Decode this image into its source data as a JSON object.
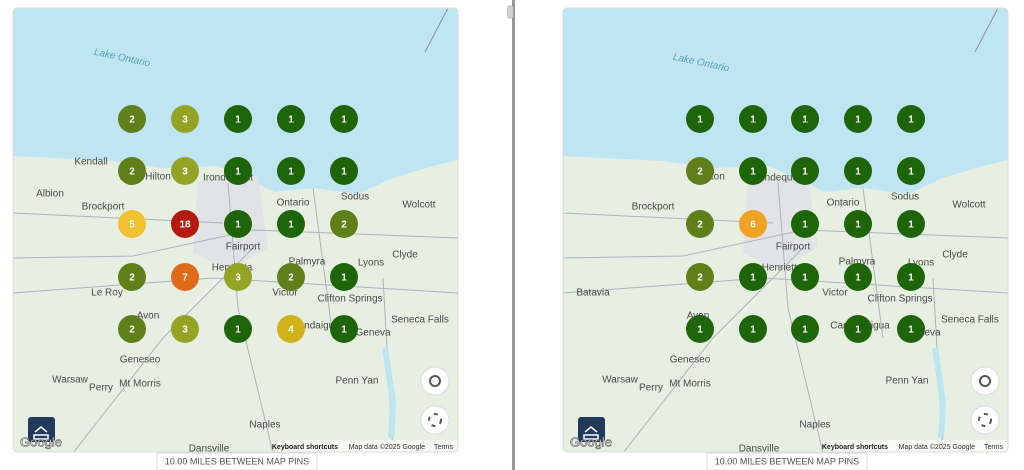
{
  "maps": [
    {
      "lake_label": "Lake Ontario",
      "place_labels": [
        "Kendall",
        "Hilton",
        "Albion",
        "Irondequoit",
        "Sodus",
        "Brockport",
        "Ontario",
        "Wolcott",
        "Fairport",
        "Henrietta",
        "Palmyra",
        "Lyons",
        "Clyde",
        "Le Roy",
        "Victor",
        "Clifton Springs",
        "Seneca Falls",
        "Avon",
        "Canandaigua",
        "Geneva",
        "Geneseo",
        "Warsaw",
        "Mt Morris",
        "Perry",
        "Penn Yan",
        "Naples",
        "Dansville"
      ],
      "pins": [
        [
          {
            "rank": 2,
            "color": "#5f7f1a"
          },
          {
            "rank": 3,
            "color": "#95a324"
          },
          {
            "rank": 1,
            "color": "#1e6408"
          },
          {
            "rank": 1,
            "color": "#1e6408"
          },
          {
            "rank": 1,
            "color": "#1e6408"
          }
        ],
        [
          {
            "rank": 2,
            "color": "#5f7f1a"
          },
          {
            "rank": 3,
            "color": "#95a324"
          },
          {
            "rank": 1,
            "color": "#1e6408"
          },
          {
            "rank": 1,
            "color": "#1e6408"
          },
          {
            "rank": 1,
            "color": "#1e6408"
          }
        ],
        [
          {
            "rank": 5,
            "color": "#f2c232"
          },
          {
            "rank": 18,
            "color": "#b3190f"
          },
          {
            "rank": 1,
            "color": "#1e6408"
          },
          {
            "rank": 1,
            "color": "#1e6408"
          },
          {
            "rank": 2,
            "color": "#5f7f1a"
          }
        ],
        [
          {
            "rank": 2,
            "color": "#5f7f1a"
          },
          {
            "rank": 7,
            "color": "#df6a1a"
          },
          {
            "rank": 3,
            "color": "#95a324"
          },
          {
            "rank": 2,
            "color": "#5f7f1a"
          },
          {
            "rank": 1,
            "color": "#1e6408"
          }
        ],
        [
          {
            "rank": 2,
            "color": "#5f7f1a"
          },
          {
            "rank": 3,
            "color": "#95a324"
          },
          {
            "rank": 1,
            "color": "#1e6408"
          },
          {
            "rank": 4,
            "color": "#d2b21c"
          },
          {
            "rank": 1,
            "color": "#1e6408"
          }
        ]
      ],
      "google": "Google",
      "shortcuts": "Keyboard shortcuts",
      "map_data": "Map data ©2025 Google",
      "terms": "Terms",
      "distance": "10.00 MILES BETWEEN MAP PINS"
    },
    {
      "lake_label": "Lake Ontario",
      "place_labels": [
        "Hilton",
        "Irondequoit",
        "Sodus",
        "Brockport",
        "Ontario",
        "Wolcott",
        "Fairport",
        "Henrietta",
        "Palmyra",
        "Lyons",
        "Clyde",
        "Batavia",
        "Victor",
        "Clifton Springs",
        "Seneca Falls",
        "Avon",
        "Canandaigua",
        "Geneva",
        "Geneseo",
        "Warsaw",
        "Mt Morris",
        "Perry",
        "Penn Yan",
        "Naples",
        "Dansville"
      ],
      "pins": [
        [
          {
            "rank": 1,
            "color": "#1e6408"
          },
          {
            "rank": 1,
            "color": "#1e6408"
          },
          {
            "rank": 1,
            "color": "#1e6408"
          },
          {
            "rank": 1,
            "color": "#1e6408"
          },
          {
            "rank": 1,
            "color": "#1e6408"
          }
        ],
        [
          {
            "rank": 2,
            "color": "#5f7f1a"
          },
          {
            "rank": 1,
            "color": "#1e6408"
          },
          {
            "rank": 1,
            "color": "#1e6408"
          },
          {
            "rank": 1,
            "color": "#1e6408"
          },
          {
            "rank": 1,
            "color": "#1e6408"
          }
        ],
        [
          {
            "rank": 2,
            "color": "#5f7f1a"
          },
          {
            "rank": 6,
            "color": "#f0a224"
          },
          {
            "rank": 1,
            "color": "#1e6408"
          },
          {
            "rank": 1,
            "color": "#1e6408"
          },
          {
            "rank": 1,
            "color": "#1e6408"
          }
        ],
        [
          {
            "rank": 2,
            "color": "#5f7f1a"
          },
          {
            "rank": 1,
            "color": "#1e6408"
          },
          {
            "rank": 1,
            "color": "#1e6408"
          },
          {
            "rank": 1,
            "color": "#1e6408"
          },
          {
            "rank": 1,
            "color": "#1e6408"
          }
        ],
        [
          {
            "rank": 1,
            "color": "#1e6408"
          },
          {
            "rank": 1,
            "color": "#1e6408"
          },
          {
            "rank": 1,
            "color": "#1e6408"
          },
          {
            "rank": 1,
            "color": "#1e6408"
          },
          {
            "rank": 1,
            "color": "#1e6408"
          }
        ]
      ],
      "google": "Google",
      "shortcuts": "Keyboard shortcuts",
      "map_data": "Map data ©2025 Google",
      "terms": "Terms",
      "distance": "10.00 MILES BETWEEN MAP PINS"
    }
  ]
}
